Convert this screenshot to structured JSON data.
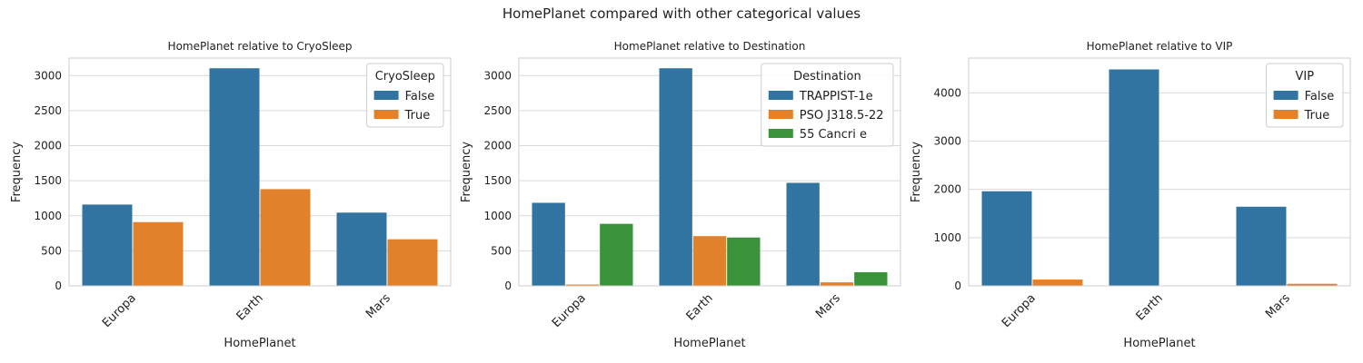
{
  "figure": {
    "suptitle": "HomePlanet compared with other categorical values"
  },
  "colors": {
    "blue": "#3274a1",
    "orange": "#e1812c",
    "green": "#3a923a",
    "grid": "#d9d9d9",
    "frame": "#cccccc"
  },
  "chart_data": [
    {
      "type": "bar",
      "title": "HomePlanet relative to CryoSleep",
      "xlabel": "HomePlanet",
      "ylabel": "Frequency",
      "categories": [
        "Europa",
        "Earth",
        "Mars"
      ],
      "ylim": [
        0,
        3250
      ],
      "yticks": [
        0,
        500,
        1000,
        1500,
        2000,
        2500,
        3000
      ],
      "legend": {
        "title": "CryoSleep",
        "placement": "top-right"
      },
      "series": [
        {
          "name": "False",
          "color": "#3274a1",
          "values": [
            1160,
            3105,
            1045
          ]
        },
        {
          "name": "True",
          "color": "#e1812c",
          "values": [
            910,
            1380,
            665
          ]
        }
      ]
    },
    {
      "type": "bar",
      "title": "HomePlanet relative to Destination",
      "xlabel": "HomePlanet",
      "ylabel": "Frequency",
      "categories": [
        "Europa",
        "Earth",
        "Mars"
      ],
      "ylim": [
        0,
        3250
      ],
      "yticks": [
        0,
        500,
        1000,
        1500,
        2000,
        2500,
        3000
      ],
      "legend": {
        "title": "Destination",
        "placement": "top-right"
      },
      "series": [
        {
          "name": "TRAPPIST-1e",
          "color": "#3274a1",
          "values": [
            1185,
            3105,
            1470
          ]
        },
        {
          "name": "PSO J318.5-22",
          "color": "#e1812c",
          "values": [
            19,
            710,
            50
          ]
        },
        {
          "name": "55 Cancri e",
          "color": "#3a923a",
          "values": [
            885,
            690,
            195
          ]
        }
      ]
    },
    {
      "type": "bar",
      "title": "HomePlanet relative to VIP",
      "xlabel": "HomePlanet",
      "ylabel": "Frequency",
      "categories": [
        "Europa",
        "Earth",
        "Mars"
      ],
      "ylim": [
        0,
        4720
      ],
      "yticks": [
        0,
        1000,
        2000,
        3000,
        4000
      ],
      "legend": {
        "title": "VIP",
        "placement": "top-right"
      },
      "series": [
        {
          "name": "False",
          "color": "#3274a1",
          "values": [
            1960,
            4485,
            1640
          ]
        },
        {
          "name": "True",
          "color": "#e1812c",
          "values": [
            130,
            0,
            43
          ]
        }
      ]
    }
  ]
}
